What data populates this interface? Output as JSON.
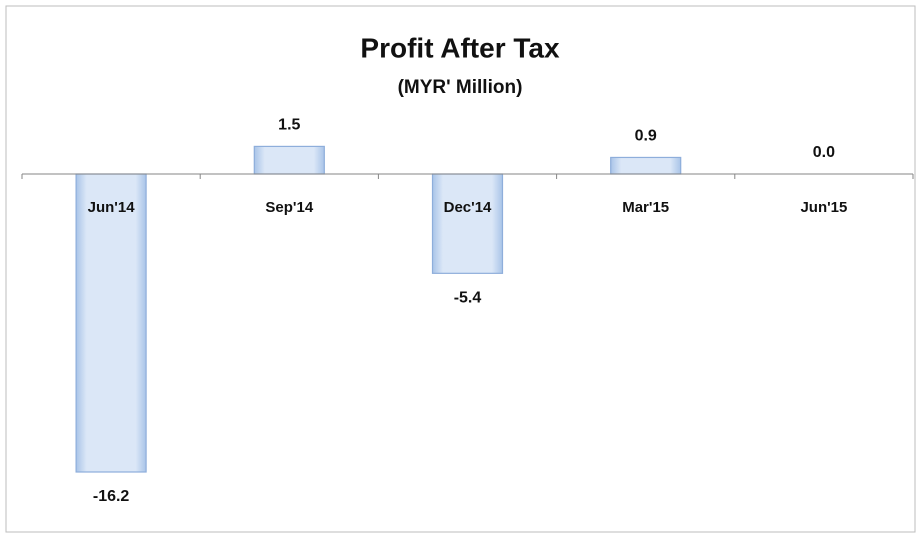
{
  "chart_data": {
    "type": "bar",
    "title": "Profit After Tax",
    "subtitle": "(MYR' Million)",
    "categories": [
      "Jun'14",
      "Sep'14",
      "Dec'14",
      "Mar'15",
      "Jun'15"
    ],
    "values": [
      -16.2,
      1.5,
      -5.4,
      0.9,
      0.0
    ],
    "value_labels": [
      "-16.2",
      "1.5",
      "-5.4",
      "0.9",
      "0.0"
    ],
    "color": "#c6d9f1"
  }
}
